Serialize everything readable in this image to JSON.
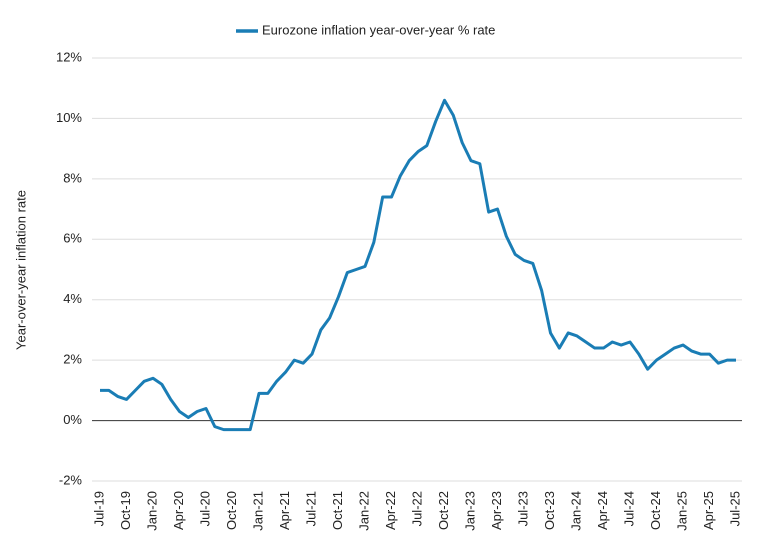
{
  "chart_data": {
    "type": "line",
    "y_label": "Year-over-year inflation rate",
    "categories": [
      "Jul-19",
      null,
      null,
      "Oct-19",
      null,
      null,
      "Jan-20",
      null,
      null,
      "Apr-20",
      null,
      null,
      "Jul-20",
      null,
      null,
      "Oct-20",
      null,
      null,
      "Jan-21",
      null,
      null,
      "Apr-21",
      null,
      null,
      "Jul-21",
      null,
      null,
      "Oct-21",
      null,
      null,
      "Jan-22",
      null,
      null,
      "Apr-22",
      null,
      null,
      "Jul-22",
      null,
      null,
      "Oct-22",
      null,
      null,
      "Jan-23",
      null,
      null,
      "Apr-23",
      null,
      null,
      "Jul-23",
      null,
      null,
      "Oct-23",
      null,
      null,
      "Jan-24",
      null,
      null,
      "Apr-24",
      null,
      null,
      "Jul-24",
      null,
      null,
      "Oct-24",
      null,
      null,
      "Jan-25",
      null,
      null,
      "Apr-25",
      null,
      null,
      "Jul-25"
    ],
    "series": [
      {
        "name": "Eurozone inflation year-over-year % rate",
        "color": "#1a7db5",
        "values": [
          1.0,
          1.0,
          0.8,
          0.7,
          1.0,
          1.3,
          1.4,
          1.2,
          0.7,
          0.3,
          0.1,
          0.3,
          0.4,
          -0.2,
          -0.3,
          -0.3,
          -0.3,
          -0.3,
          0.9,
          0.9,
          1.3,
          1.6,
          2.0,
          1.9,
          2.2,
          3.0,
          3.4,
          4.1,
          4.9,
          5.0,
          5.1,
          5.9,
          7.4,
          7.4,
          8.1,
          8.6,
          8.9,
          9.1,
          9.9,
          10.6,
          10.1,
          9.2,
          8.6,
          8.5,
          6.9,
          7.0,
          6.1,
          5.5,
          5.3,
          5.2,
          4.3,
          2.9,
          2.4,
          2.9,
          2.8,
          2.6,
          2.4,
          2.4,
          2.6,
          2.5,
          2.6,
          2.2,
          1.7,
          2.0,
          2.2,
          2.4,
          2.5,
          2.3,
          2.2,
          2.2,
          1.9,
          2.0,
          2.0
        ]
      }
    ],
    "ylim": [
      -2,
      12
    ],
    "yticks": [
      {
        "value": -2,
        "label": "-2%"
      },
      {
        "value": 0,
        "label": "0%"
      },
      {
        "value": 2,
        "label": "2%"
      },
      {
        "value": 4,
        "label": "4%"
      },
      {
        "value": 6,
        "label": "6%"
      },
      {
        "value": 8,
        "label": "8%"
      },
      {
        "value": 10,
        "label": "10%"
      },
      {
        "value": 12,
        "label": "12%"
      }
    ],
    "grid": true,
    "legend": "top"
  }
}
